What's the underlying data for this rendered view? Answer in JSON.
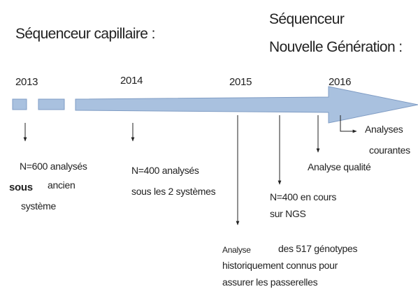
{
  "headings": {
    "capillary": "Séquenceur capillaire :",
    "ngs": [
      "Séquenceur",
      "Nouvelle Génération :"
    ]
  },
  "years": [
    "2013",
    "2014",
    "2015",
    "2016"
  ],
  "notes": [
    {
      "lines": [
        "N=600 analysés",
        "sous",
        "ancien",
        "système"
      ]
    },
    {
      "lines": [
        "N=400 analysés",
        "sous les 2 systèmes"
      ]
    },
    {
      "lines": [
        "Analyse",
        "des 517 génotypes",
        "historiquement connus pour",
        "assurer les passerelles"
      ]
    },
    {
      "lines": [
        "N=400 en cours",
        "sur NGS"
      ]
    },
    {
      "lines": [
        "Analyse qualité"
      ]
    },
    {
      "lines": [
        "Analyses",
        "courantes"
      ]
    }
  ]
}
